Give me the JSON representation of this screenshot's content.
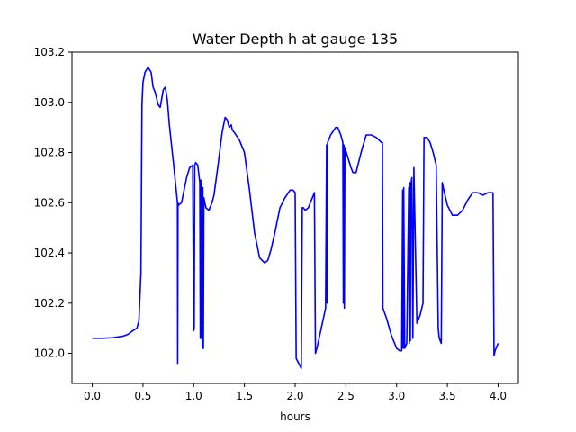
{
  "chart_data": {
    "type": "line",
    "title": "Water Depth h at gauge 135",
    "xlabel": "hours",
    "ylabel": "",
    "xlim": [
      -0.2,
      4.2
    ],
    "ylim": [
      101.88,
      103.2
    ],
    "xticks": [
      0.0,
      0.5,
      1.0,
      1.5,
      2.0,
      2.5,
      3.0,
      3.5,
      4.0
    ],
    "xtick_labels": [
      "0.0",
      "0.5",
      "1.0",
      "1.5",
      "2.0",
      "2.5",
      "3.0",
      "3.5",
      "4.0"
    ],
    "yticks": [
      102.0,
      102.2,
      102.4,
      102.6,
      102.8,
      103.0,
      103.2
    ],
    "ytick_labels": [
      "102.0",
      "102.2",
      "102.4",
      "102.6",
      "102.8",
      "103.0",
      "103.2"
    ],
    "grid": false,
    "legend": "none",
    "series": [
      {
        "color": "#0000ff",
        "x": [
          0.0,
          0.1,
          0.2,
          0.3,
          0.35,
          0.4,
          0.44,
          0.46,
          0.48,
          0.49,
          0.5,
          0.52,
          0.55,
          0.58,
          0.6,
          0.62,
          0.65,
          0.67,
          0.7,
          0.72,
          0.74,
          0.76,
          0.8,
          0.84,
          0.842,
          0.845,
          0.85,
          0.88,
          0.9,
          0.93,
          0.96,
          0.99,
          1.0,
          1.005,
          1.01,
          1.02,
          1.04,
          1.06,
          1.065,
          1.07,
          1.075,
          1.08,
          1.085,
          1.09,
          1.095,
          1.1,
          1.12,
          1.15,
          1.18,
          1.2,
          1.24,
          1.28,
          1.31,
          1.33,
          1.35,
          1.37,
          1.38,
          1.4,
          1.45,
          1.5,
          1.55,
          1.6,
          1.65,
          1.7,
          1.73,
          1.76,
          1.8,
          1.85,
          1.9,
          1.95,
          1.98,
          2.0,
          2.01,
          2.06,
          2.07,
          2.08,
          2.1,
          2.13,
          2.16,
          2.19,
          2.2,
          2.22,
          2.3,
          2.31,
          2.315,
          2.32,
          2.35,
          2.4,
          2.42,
          2.45,
          2.47,
          2.475,
          2.48,
          2.485,
          2.49,
          2.52,
          2.55,
          2.57,
          2.6,
          2.65,
          2.7,
          2.75,
          2.8,
          2.85,
          2.86,
          2.865,
          2.9,
          2.95,
          3.0,
          3.03,
          3.05,
          3.06,
          3.065,
          3.07,
          3.08,
          3.1,
          3.12,
          3.125,
          3.13,
          3.135,
          3.14,
          3.15,
          3.16,
          3.17,
          3.2,
          3.23,
          3.26,
          3.27,
          3.28,
          3.3,
          3.33,
          3.36,
          3.39,
          3.41,
          3.42,
          3.44,
          3.45,
          3.46,
          3.5,
          3.55,
          3.6,
          3.65,
          3.7,
          3.75,
          3.8,
          3.85,
          3.9,
          3.95,
          3.96,
          3.97,
          4.0
        ],
        "y": [
          102.06,
          102.06,
          102.062,
          102.068,
          102.075,
          102.09,
          102.1,
          102.13,
          102.32,
          102.99,
          103.08,
          103.12,
          103.14,
          103.12,
          103.06,
          103.04,
          102.99,
          102.98,
          103.05,
          103.06,
          103.01,
          102.91,
          102.76,
          102.6,
          101.96,
          102.6,
          102.59,
          102.6,
          102.64,
          102.7,
          102.74,
          102.75,
          102.09,
          102.1,
          102.75,
          102.76,
          102.75,
          102.68,
          102.06,
          102.69,
          102.06,
          102.67,
          102.02,
          102.66,
          102.02,
          102.62,
          102.58,
          102.57,
          102.6,
          102.63,
          102.75,
          102.88,
          102.94,
          102.93,
          102.9,
          102.91,
          102.89,
          102.88,
          102.85,
          102.8,
          102.65,
          102.48,
          102.38,
          102.36,
          102.37,
          102.41,
          102.48,
          102.58,
          102.62,
          102.65,
          102.65,
          102.64,
          101.98,
          101.94,
          102.58,
          102.58,
          102.57,
          102.58,
          102.61,
          102.64,
          102.0,
          102.03,
          102.18,
          102.83,
          102.2,
          102.84,
          102.87,
          102.9,
          102.9,
          102.87,
          102.84,
          102.2,
          102.83,
          102.18,
          102.82,
          102.78,
          102.74,
          102.72,
          102.72,
          102.8,
          102.87,
          102.87,
          102.86,
          102.84,
          102.84,
          102.18,
          102.14,
          102.07,
          102.02,
          102.01,
          102.01,
          102.65,
          102.02,
          102.66,
          102.02,
          102.04,
          102.66,
          102.04,
          102.68,
          102.05,
          102.67,
          102.7,
          102.06,
          102.74,
          102.12,
          102.15,
          102.2,
          102.86,
          102.86,
          102.86,
          102.84,
          102.8,
          102.75,
          102.1,
          102.06,
          102.04,
          102.68,
          102.66,
          102.59,
          102.55,
          102.55,
          102.57,
          102.61,
          102.64,
          102.64,
          102.63,
          102.64,
          102.64,
          101.99,
          102.01,
          102.04
        ]
      }
    ]
  }
}
